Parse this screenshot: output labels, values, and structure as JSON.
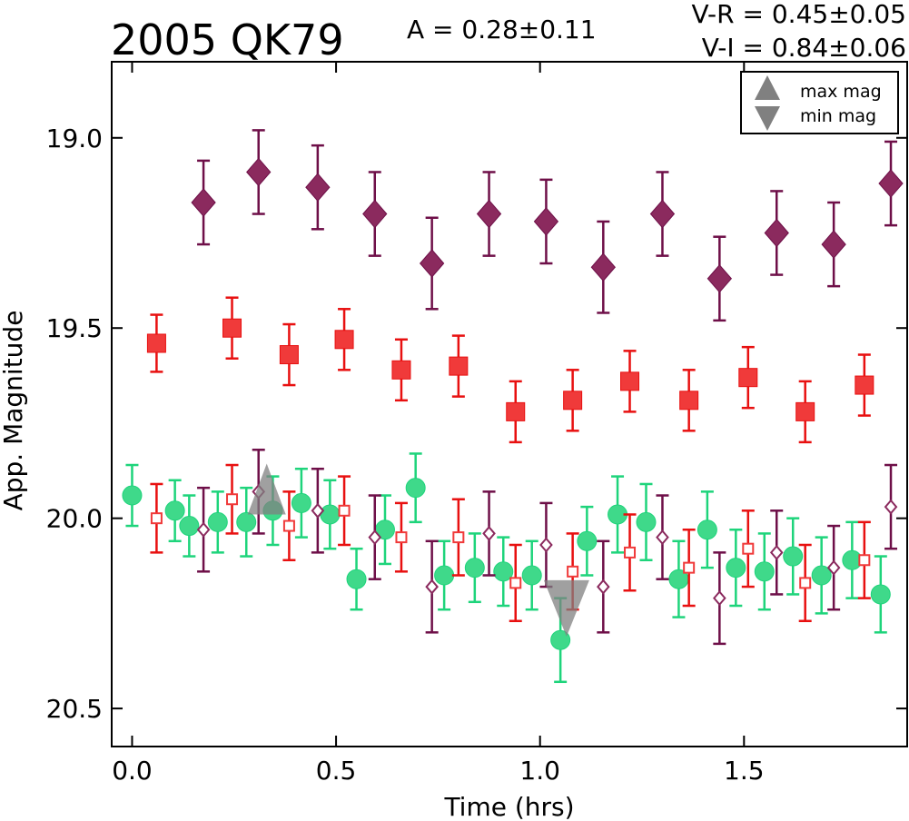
{
  "chart_data": {
    "type": "scatter",
    "title": "2005 QK79",
    "annotations": {
      "amplitude": "A  = 0.28±0.11",
      "color_vr": "V-R = 0.45±0.05",
      "color_vi": "V-I  = 0.84±0.06"
    },
    "xlabel": "Time (hrs)",
    "ylabel": "App. Magnitude",
    "xlim": [
      -0.05,
      1.9
    ],
    "ylim": [
      20.6,
      18.8
    ],
    "y_inverted": true,
    "xticks": [
      0.0,
      0.5,
      1.0,
      1.5
    ],
    "xtick_labels": [
      "0.0",
      "0.5",
      "1.0",
      "1.5"
    ],
    "yticks": [
      19.0,
      19.5,
      20.0,
      20.5
    ],
    "ytick_labels": [
      "19.0",
      "19.5",
      "20.0",
      "20.5"
    ],
    "grid": false,
    "legend": {
      "position": "top-right",
      "entries": [
        {
          "label": "max mag",
          "marker": "triangle-up",
          "color": "#808080"
        },
        {
          "label": "min mag",
          "marker": "triangle-down",
          "color": "#808080"
        }
      ]
    },
    "series": [
      {
        "marker": "diamond",
        "color": "#8b2a5e",
        "error_color": "#6e0f48",
        "points": [
          {
            "x": 0.175,
            "y": 19.17,
            "err": 0.11
          },
          {
            "x": 0.31,
            "y": 19.09,
            "err": 0.11
          },
          {
            "x": 0.455,
            "y": 19.13,
            "err": 0.11
          },
          {
            "x": 0.595,
            "y": 19.2,
            "err": 0.11
          },
          {
            "x": 0.735,
            "y": 19.33,
            "err": 0.12
          },
          {
            "x": 0.875,
            "y": 19.2,
            "err": 0.11
          },
          {
            "x": 1.015,
            "y": 19.22,
            "err": 0.11
          },
          {
            "x": 1.155,
            "y": 19.34,
            "err": 0.12
          },
          {
            "x": 1.3,
            "y": 19.2,
            "err": 0.11
          },
          {
            "x": 1.44,
            "y": 19.37,
            "err": 0.11
          },
          {
            "x": 1.58,
            "y": 19.25,
            "err": 0.11
          },
          {
            "x": 1.72,
            "y": 19.28,
            "err": 0.11
          },
          {
            "x": 1.86,
            "y": 19.12,
            "err": 0.11
          }
        ]
      },
      {
        "marker": "square",
        "color": "#f03a3a",
        "error_color": "#e81010",
        "points": [
          {
            "x": 0.06,
            "y": 19.54,
            "err": 0.075
          },
          {
            "x": 0.245,
            "y": 19.5,
            "err": 0.08
          },
          {
            "x": 0.385,
            "y": 19.57,
            "err": 0.08
          },
          {
            "x": 0.52,
            "y": 19.53,
            "err": 0.08
          },
          {
            "x": 0.66,
            "y": 19.61,
            "err": 0.08
          },
          {
            "x": 0.8,
            "y": 19.6,
            "err": 0.08
          },
          {
            "x": 0.94,
            "y": 19.72,
            "err": 0.08
          },
          {
            "x": 1.08,
            "y": 19.69,
            "err": 0.08
          },
          {
            "x": 1.22,
            "y": 19.64,
            "err": 0.08
          },
          {
            "x": 1.365,
            "y": 19.69,
            "err": 0.08
          },
          {
            "x": 1.51,
            "y": 19.63,
            "err": 0.08
          },
          {
            "x": 1.65,
            "y": 19.72,
            "err": 0.08
          },
          {
            "x": 1.795,
            "y": 19.65,
            "err": 0.08
          }
        ]
      },
      {
        "marker": "circle",
        "color": "#3fd98a",
        "error_color": "#1ed47b",
        "points": [
          {
            "x": 0.0,
            "y": 19.94,
            "err": 0.08
          },
          {
            "x": 0.105,
            "y": 19.98,
            "err": 0.08
          },
          {
            "x": 0.14,
            "y": 20.02,
            "err": 0.08
          },
          {
            "x": 0.21,
            "y": 20.01,
            "err": 0.08
          },
          {
            "x": 0.28,
            "y": 20.01,
            "err": 0.09
          },
          {
            "x": 0.345,
            "y": 19.98,
            "err": 0.09
          },
          {
            "x": 0.415,
            "y": 19.96,
            "err": 0.09
          },
          {
            "x": 0.485,
            "y": 19.99,
            "err": 0.09
          },
          {
            "x": 0.55,
            "y": 20.16,
            "err": 0.08
          },
          {
            "x": 0.62,
            "y": 20.03,
            "err": 0.09
          },
          {
            "x": 0.695,
            "y": 19.92,
            "err": 0.09
          },
          {
            "x": 0.765,
            "y": 20.15,
            "err": 0.09
          },
          {
            "x": 0.84,
            "y": 20.13,
            "err": 0.09
          },
          {
            "x": 0.91,
            "y": 20.14,
            "err": 0.09
          },
          {
            "x": 0.98,
            "y": 20.15,
            "err": 0.09
          },
          {
            "x": 1.05,
            "y": 20.32,
            "err": 0.11
          },
          {
            "x": 1.115,
            "y": 20.06,
            "err": 0.09
          },
          {
            "x": 1.19,
            "y": 19.99,
            "err": 0.1
          },
          {
            "x": 1.26,
            "y": 20.01,
            "err": 0.1
          },
          {
            "x": 1.34,
            "y": 20.16,
            "err": 0.1
          },
          {
            "x": 1.41,
            "y": 20.03,
            "err": 0.1
          },
          {
            "x": 1.48,
            "y": 20.13,
            "err": 0.1
          },
          {
            "x": 1.55,
            "y": 20.14,
            "err": 0.1
          },
          {
            "x": 1.62,
            "y": 20.1,
            "err": 0.1
          },
          {
            "x": 1.69,
            "y": 20.15,
            "err": 0.1
          },
          {
            "x": 1.765,
            "y": 20.11,
            "err": 0.1
          },
          {
            "x": 1.835,
            "y": 20.2,
            "err": 0.1
          }
        ]
      },
      {
        "marker": "square-open",
        "color": "#f03a3a",
        "error_color": "#e81010",
        "points": [
          {
            "x": 0.06,
            "y": 20.0,
            "err": 0.09
          },
          {
            "x": 0.245,
            "y": 19.95,
            "err": 0.09
          },
          {
            "x": 0.385,
            "y": 20.02,
            "err": 0.09
          },
          {
            "x": 0.52,
            "y": 19.98,
            "err": 0.09
          },
          {
            "x": 0.66,
            "y": 20.05,
            "err": 0.09
          },
          {
            "x": 0.8,
            "y": 20.05,
            "err": 0.1
          },
          {
            "x": 0.94,
            "y": 20.17,
            "err": 0.1
          },
          {
            "x": 1.08,
            "y": 20.14,
            "err": 0.1
          },
          {
            "x": 1.22,
            "y": 20.09,
            "err": 0.1
          },
          {
            "x": 1.365,
            "y": 20.13,
            "err": 0.1
          },
          {
            "x": 1.51,
            "y": 20.08,
            "err": 0.1
          },
          {
            "x": 1.65,
            "y": 20.17,
            "err": 0.1
          },
          {
            "x": 1.795,
            "y": 20.11,
            "err": 0.1
          }
        ]
      },
      {
        "marker": "diamond-open",
        "color": "#8b2a5e",
        "error_color": "#6e0f48",
        "points": [
          {
            "x": 0.175,
            "y": 20.03,
            "err": 0.11
          },
          {
            "x": 0.31,
            "y": 19.93,
            "err": 0.11
          },
          {
            "x": 0.455,
            "y": 19.98,
            "err": 0.11
          },
          {
            "x": 0.595,
            "y": 20.05,
            "err": 0.11
          },
          {
            "x": 0.735,
            "y": 20.18,
            "err": 0.12
          },
          {
            "x": 0.875,
            "y": 20.04,
            "err": 0.11
          },
          {
            "x": 1.015,
            "y": 20.07,
            "err": 0.11
          },
          {
            "x": 1.155,
            "y": 20.18,
            "err": 0.12
          },
          {
            "x": 1.3,
            "y": 20.05,
            "err": 0.11
          },
          {
            "x": 1.44,
            "y": 20.21,
            "err": 0.12
          },
          {
            "x": 1.58,
            "y": 20.09,
            "err": 0.11
          },
          {
            "x": 1.72,
            "y": 20.13,
            "err": 0.11
          },
          {
            "x": 1.86,
            "y": 19.97,
            "err": 0.11
          }
        ]
      }
    ],
    "extrema": [
      {
        "kind": "max",
        "x": 0.33,
        "y": 19.99,
        "color": "#808080"
      },
      {
        "kind": "min",
        "x": 1.065,
        "y": 20.22,
        "color": "#808080"
      }
    ]
  }
}
